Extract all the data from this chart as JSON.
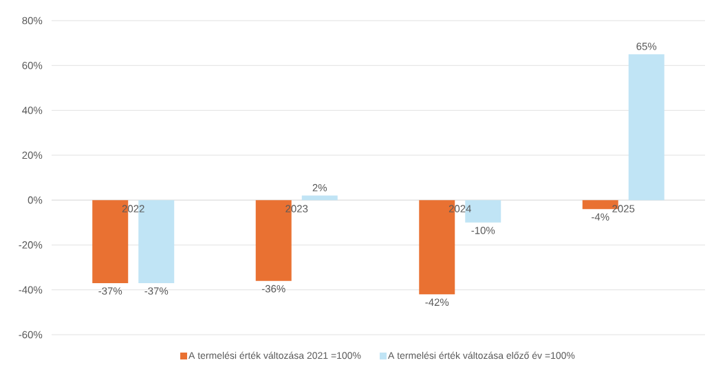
{
  "chart_data": {
    "type": "bar",
    "categories": [
      "2022",
      "2023",
      "2024",
      "2025"
    ],
    "series": [
      {
        "name": "A termelési érték változása 2021 =100%",
        "color": "#e97132",
        "values": [
          -37,
          -36,
          -42,
          -4
        ],
        "value_labels": [
          "-37%",
          "-36%",
          "-42%",
          "-4%"
        ]
      },
      {
        "name": "A termelési érték változása előző év =100%",
        "color": "#c0e4f5",
        "values": [
          -37,
          2,
          -10,
          65
        ],
        "value_labels": [
          "-37%",
          "2%",
          "-10%",
          "65%"
        ]
      }
    ],
    "ylim": [
      -60,
      80
    ],
    "yticks": [
      {
        "value": -60,
        "label": "-60%"
      },
      {
        "value": -40,
        "label": "-40%"
      },
      {
        "value": -20,
        "label": "-20%"
      },
      {
        "value": 0,
        "label": "0%"
      },
      {
        "value": 20,
        "label": "20%"
      },
      {
        "value": 40,
        "label": "40%"
      },
      {
        "value": 60,
        "label": "60%"
      },
      {
        "value": 80,
        "label": "80%"
      }
    ],
    "grid": "y",
    "legend": "bottom"
  }
}
